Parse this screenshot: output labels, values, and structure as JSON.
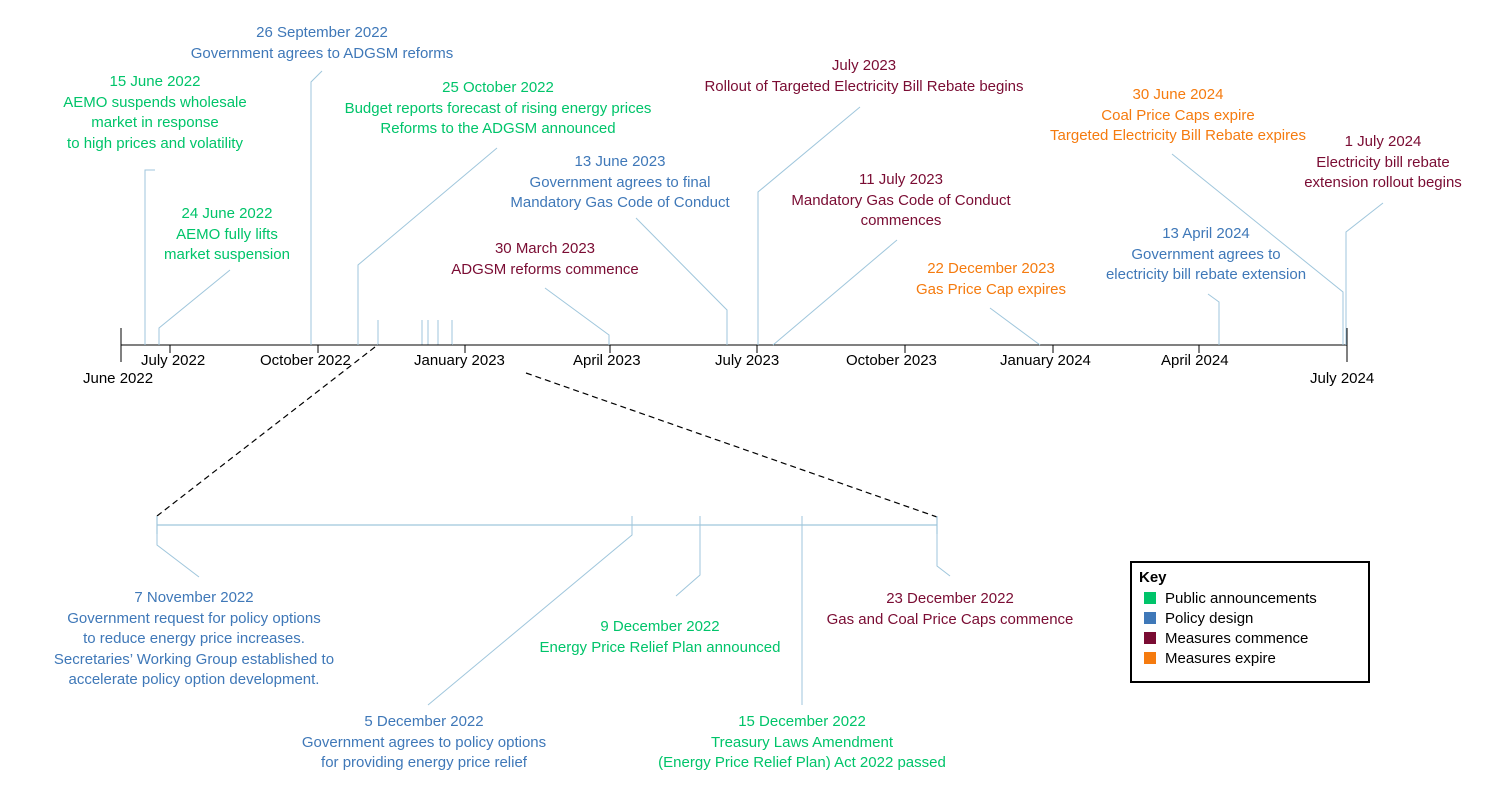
{
  "colors": {
    "public": "#00c46a",
    "policy": "#3f78b8",
    "commence": "#7a0c33",
    "expire": "#f57b0f",
    "connector": "#9fc6dc",
    "axis": "#000000"
  },
  "axis_ticks": [
    "June 2022",
    "July 2022",
    "October 2022",
    "January 2023",
    "April 2023",
    "July 2023",
    "October 2023",
    "January 2024",
    "April 2024",
    "July 2024"
  ],
  "events": [
    {
      "date": "15 June 2022",
      "lines": [
        "AEMO suspends wholesale",
        "market in response",
        "to high prices and volatility"
      ],
      "category": "public"
    },
    {
      "date": "24 June 2022",
      "lines": [
        "AEMO fully lifts",
        "market suspension"
      ],
      "category": "public"
    },
    {
      "date": "26 September 2022",
      "lines": [
        "Government agrees to ADGSM reforms"
      ],
      "category": "policy"
    },
    {
      "date": "25 October 2022",
      "lines": [
        "Budget reports forecast of rising energy prices",
        "Reforms to the ADGSM announced"
      ],
      "category": "public"
    },
    {
      "date": "30 March 2023",
      "lines": [
        "ADGSM reforms commence"
      ],
      "category": "commence"
    },
    {
      "date": "13 June 2023",
      "lines": [
        "Government agrees to final",
        "Mandatory Gas Code of Conduct"
      ],
      "category": "policy"
    },
    {
      "date": "July 2023",
      "lines": [
        "Rollout of Targeted Electricity Bill Rebate begins"
      ],
      "category": "commence"
    },
    {
      "date": "11 July 2023",
      "lines": [
        "Mandatory Gas Code of Conduct",
        "commences"
      ],
      "category": "commence"
    },
    {
      "date": "22 December 2023",
      "lines": [
        "Gas Price Cap expires"
      ],
      "category": "expire"
    },
    {
      "date": "13 April 2024",
      "lines": [
        "Government agrees to",
        "electricity bill rebate extension"
      ],
      "category": "policy"
    },
    {
      "date": "30 June 2024",
      "lines": [
        "Coal Price Caps expire",
        "Targeted Electricity Bill Rebate expires"
      ],
      "category": "expire"
    },
    {
      "date": "1 July 2024",
      "lines": [
        "Electricity bill rebate",
        "extension rollout begins"
      ],
      "category": "commence"
    }
  ],
  "zoom_events": [
    {
      "date": "7 November 2022",
      "lines": [
        "Government request for policy options",
        "to reduce energy price increases.",
        "Secretaries’ Working Group established to",
        "accelerate policy option development."
      ],
      "category": "policy"
    },
    {
      "date": "5 December 2022",
      "lines": [
        "Government agrees to policy options",
        "for providing energy price relief"
      ],
      "category": "policy"
    },
    {
      "date": "9 December 2022",
      "lines": [
        "Energy Price Relief Plan announced"
      ],
      "category": "public"
    },
    {
      "date": "15 December 2022",
      "lines": [
        "Treasury Laws Amendment",
        "(Energy Price Relief Plan) Act 2022 passed"
      ],
      "category": "public"
    },
    {
      "date": "23 December 2022",
      "lines": [
        "Gas and Coal Price Caps commence"
      ],
      "category": "commence"
    }
  ],
  "key": {
    "title": "Key",
    "items": [
      {
        "label": "Public announcements",
        "category": "public"
      },
      {
        "label": "Policy design",
        "category": "policy"
      },
      {
        "label": "Measures commence",
        "category": "commence"
      },
      {
        "label": "Measures expire",
        "category": "expire"
      }
    ]
  }
}
